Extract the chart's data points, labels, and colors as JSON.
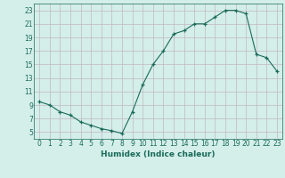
{
  "x": [
    0,
    1,
    2,
    3,
    4,
    5,
    6,
    7,
    8,
    9,
    10,
    11,
    12,
    13,
    14,
    15,
    16,
    17,
    18,
    19,
    20,
    21,
    22,
    23
  ],
  "y": [
    9.5,
    9.0,
    8.0,
    7.5,
    6.5,
    6.0,
    5.5,
    5.2,
    4.8,
    8.0,
    12.0,
    15.0,
    17.0,
    19.5,
    20.0,
    21.0,
    21.0,
    22.0,
    23.0,
    23.0,
    22.5,
    16.5,
    16.0,
    14.0
  ],
  "xlabel": "Humidex (Indice chaleur)",
  "line_color": "#1a6b5a",
  "marker_color": "#1a6b5a",
  "bg_color": "#d4eeea",
  "grid_color": "#c0b8c0",
  "text_color": "#1a6b5a",
  "xlim": [
    -0.5,
    23.5
  ],
  "ylim": [
    4.0,
    24.0
  ],
  "yticks": [
    5,
    7,
    9,
    11,
    13,
    15,
    17,
    19,
    21,
    23
  ],
  "xticks": [
    0,
    1,
    2,
    3,
    4,
    5,
    6,
    7,
    8,
    9,
    10,
    11,
    12,
    13,
    14,
    15,
    16,
    17,
    18,
    19,
    20,
    21,
    22,
    23
  ],
  "xtick_labels": [
    "0",
    "1",
    "2",
    "3",
    "4",
    "5",
    "6",
    "7",
    "8",
    "9",
    "10",
    "11",
    "12",
    "13",
    "14",
    "15",
    "16",
    "17",
    "18",
    "19",
    "20",
    "21",
    "22",
    "23"
  ],
  "tick_fontsize": 5.5,
  "xlabel_fontsize": 6.5
}
